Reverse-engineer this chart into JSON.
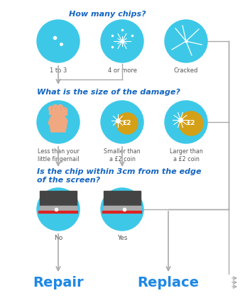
{
  "bg_color": "#ffffff",
  "circle_color": "#3dc8e8",
  "q1_text": "How many chips?",
  "q2_text": "What is the size of the damage?",
  "q3_text": "Is the chip within 3cm from the edge\nof the screen?",
  "chips_labels": [
    "1 to 3",
    "4 or more",
    "Cracked"
  ],
  "size_labels": [
    "Less than your\nlittle fingernail",
    "Smaller than\na £2 coin",
    "Larger than\na £2 coin"
  ],
  "edge_labels": [
    "No",
    "Yes"
  ],
  "repair_text": "Repair",
  "replace_text": "Replace",
  "arrow_color": "#aaaaaa",
  "question_color": "#1565c0",
  "label_color": "#555555",
  "outcome_color": "#1e88e5",
  "coin_color": "#d4a017",
  "hand_color": "#f0a880",
  "fig_width": 3.45,
  "fig_height": 4.2,
  "dpi": 100
}
